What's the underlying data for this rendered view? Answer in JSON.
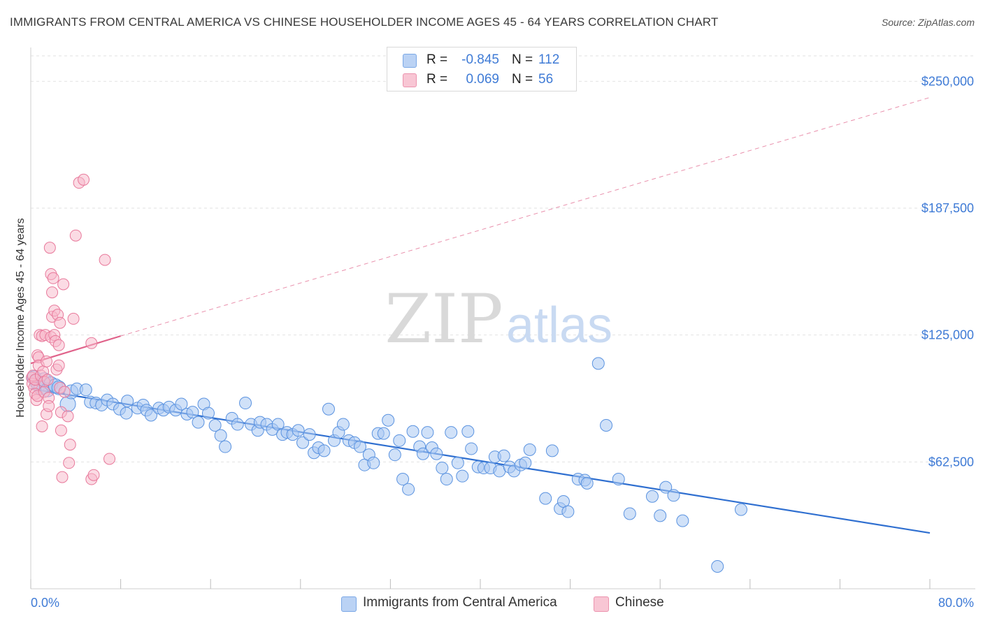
{
  "title": "IMMIGRANTS FROM CENTRAL AMERICA VS CHINESE HOUSEHOLDER INCOME AGES 45 - 64 YEARS CORRELATION CHART",
  "source": "Source: ZipAtlas.com",
  "watermark": {
    "zip": "ZIP",
    "atlas": "atlas"
  },
  "legend": {
    "rows": [
      {
        "r_label": "R =",
        "r_value": "-0.845",
        "n_label": "N =",
        "n_value": "112"
      },
      {
        "r_label": "R =",
        "r_value": "0.069",
        "n_label": "N =",
        "n_value": "56"
      }
    ]
  },
  "bottom_legend": {
    "series1": "Immigrants from Central America",
    "series2": "Chinese"
  },
  "colors": {
    "blue_fill": "#a9c8f2",
    "blue_stroke": "#5b93e0",
    "blue_line": "#2f6fd0",
    "pink_fill": "#f7b8ca",
    "pink_stroke": "#e8799b",
    "pink_line": "#e0628a",
    "tick_text": "#3f7bd6"
  },
  "chart_data": {
    "type": "scatter",
    "title": "IMMIGRANTS FROM CENTRAL AMERICA VS CHINESE HOUSEHOLDER INCOME AGES 45 - 64 YEARS CORRELATION CHART",
    "xlabel": "",
    "ylabel": "Householder Income Ages 45 - 64 years",
    "xlim": [
      0,
      80
    ],
    "ylim": [
      0,
      262500
    ],
    "x_tick_labels": [
      "0.0%",
      "80.0%"
    ],
    "y_ticks": [
      62500,
      125000,
      187500,
      250000
    ],
    "y_tick_labels": [
      "$62,500",
      "$125,000",
      "$187,500",
      "$250,000"
    ],
    "grid": true,
    "legend_position": "top-center",
    "series": [
      {
        "name": "Immigrants from Central America",
        "R": -0.845,
        "N": 112,
        "trend": {
          "x": [
            0,
            80
          ],
          "y": [
            98500,
            27500
          ]
        },
        "points": [
          [
            0.3,
            104000
          ],
          [
            0.5,
            102000
          ],
          [
            0.7,
            100500
          ],
          [
            0.9,
            99000
          ],
          [
            1.2,
            103000
          ],
          [
            1.5,
            98000
          ],
          [
            1.8,
            101000
          ],
          [
            2.2,
            100000
          ],
          [
            2.5,
            99000
          ],
          [
            3.3,
            91000
          ],
          [
            3.6,
            97000
          ],
          [
            4.1,
            98500
          ],
          [
            4.9,
            98000
          ],
          [
            5.3,
            92000
          ],
          [
            5.8,
            91500
          ],
          [
            6.3,
            90500
          ],
          [
            6.8,
            93000
          ],
          [
            7.3,
            91000
          ],
          [
            7.9,
            88500
          ],
          [
            8.5,
            86500
          ],
          [
            8.6,
            92500
          ],
          [
            9.5,
            89000
          ],
          [
            10.0,
            90500
          ],
          [
            10.3,
            88000
          ],
          [
            10.7,
            85500
          ],
          [
            11.4,
            89000
          ],
          [
            11.8,
            88000
          ],
          [
            12.3,
            89500
          ],
          [
            12.9,
            88000
          ],
          [
            13.4,
            91000
          ],
          [
            13.9,
            86000
          ],
          [
            14.4,
            87000
          ],
          [
            14.9,
            82000
          ],
          [
            15.4,
            91000
          ],
          [
            15.8,
            86500
          ],
          [
            16.4,
            80500
          ],
          [
            16.9,
            75500
          ],
          [
            17.3,
            70000
          ],
          [
            17.9,
            84000
          ],
          [
            18.4,
            81000
          ],
          [
            19.1,
            91500
          ],
          [
            19.6,
            81000
          ],
          [
            20.2,
            78000
          ],
          [
            20.4,
            82000
          ],
          [
            21.0,
            81000
          ],
          [
            21.5,
            78500
          ],
          [
            22.0,
            81000
          ],
          [
            22.4,
            76000
          ],
          [
            22.8,
            77000
          ],
          [
            23.3,
            76000
          ],
          [
            23.8,
            78000
          ],
          [
            24.2,
            72000
          ],
          [
            24.8,
            76000
          ],
          [
            25.2,
            67000
          ],
          [
            25.6,
            69500
          ],
          [
            26.1,
            68000
          ],
          [
            26.5,
            88500
          ],
          [
            27.0,
            73000
          ],
          [
            27.4,
            77000
          ],
          [
            27.8,
            81000
          ],
          [
            28.3,
            73000
          ],
          [
            28.8,
            72000
          ],
          [
            29.3,
            70000
          ],
          [
            29.7,
            61000
          ],
          [
            30.1,
            66000
          ],
          [
            30.5,
            62000
          ],
          [
            30.9,
            76500
          ],
          [
            31.4,
            76500
          ],
          [
            31.8,
            83000
          ],
          [
            32.4,
            66000
          ],
          [
            32.8,
            73000
          ],
          [
            33.1,
            54000
          ],
          [
            33.6,
            49000
          ],
          [
            34.0,
            77500
          ],
          [
            34.6,
            70000
          ],
          [
            34.9,
            66500
          ],
          [
            35.3,
            77000
          ],
          [
            35.7,
            69500
          ],
          [
            36.1,
            66500
          ],
          [
            36.6,
            59500
          ],
          [
            37.0,
            54000
          ],
          [
            37.4,
            77000
          ],
          [
            38.0,
            62000
          ],
          [
            38.4,
            55500
          ],
          [
            38.9,
            77500
          ],
          [
            39.2,
            69000
          ],
          [
            39.8,
            60000
          ],
          [
            40.3,
            59500
          ],
          [
            40.9,
            59500
          ],
          [
            41.3,
            65000
          ],
          [
            41.7,
            58000
          ],
          [
            42.1,
            65500
          ],
          [
            42.6,
            60000
          ],
          [
            43.0,
            58000
          ],
          [
            43.6,
            61000
          ],
          [
            44.0,
            62000
          ],
          [
            44.4,
            68500
          ],
          [
            45.8,
            44500
          ],
          [
            46.4,
            68000
          ],
          [
            47.1,
            39500
          ],
          [
            47.4,
            43000
          ],
          [
            47.8,
            38000
          ],
          [
            48.7,
            54000
          ],
          [
            49.3,
            53500
          ],
          [
            49.5,
            52000
          ],
          [
            50.5,
            111000
          ],
          [
            51.2,
            80500
          ],
          [
            52.3,
            54000
          ],
          [
            53.3,
            37000
          ],
          [
            56.5,
            50000
          ],
          [
            57.2,
            46000
          ],
          [
            58.0,
            33500
          ],
          [
            61.1,
            11000
          ],
          [
            63.2,
            39000
          ],
          [
            56.0,
            36000
          ],
          [
            55.3,
            45500
          ]
        ]
      },
      {
        "name": "Chinese",
        "R": 0.069,
        "N": 56,
        "trend_solid": {
          "x": [
            0,
            8
          ],
          "y": [
            111000,
            124500
          ]
        },
        "trend_dashed": {
          "x": [
            8,
            80
          ],
          "y": [
            124500,
            242000
          ]
        },
        "points": [
          [
            0.1,
            104000
          ],
          [
            0.15,
            101000
          ],
          [
            0.2,
            105000
          ],
          [
            0.3,
            99000
          ],
          [
            0.4,
            103000
          ],
          [
            0.4,
            96000
          ],
          [
            0.5,
            93000
          ],
          [
            0.6,
            95000
          ],
          [
            0.6,
            115000
          ],
          [
            0.7,
            114000
          ],
          [
            0.7,
            110000
          ],
          [
            0.8,
            125000
          ],
          [
            0.9,
            105000
          ],
          [
            1.0,
            80000
          ],
          [
            1.0,
            124500
          ],
          [
            1.1,
            107000
          ],
          [
            1.2,
            102000
          ],
          [
            1.2,
            97000
          ],
          [
            1.3,
            125000
          ],
          [
            1.4,
            112000
          ],
          [
            1.4,
            86000
          ],
          [
            1.5,
            103000
          ],
          [
            1.6,
            94000
          ],
          [
            1.6,
            90000
          ],
          [
            1.7,
            168000
          ],
          [
            1.8,
            155000
          ],
          [
            1.8,
            124000
          ],
          [
            1.9,
            146000
          ],
          [
            1.9,
            134000
          ],
          [
            2.0,
            153000
          ],
          [
            2.1,
            137000
          ],
          [
            2.1,
            125000
          ],
          [
            2.2,
            122000
          ],
          [
            2.3,
            108000
          ],
          [
            2.4,
            135000
          ],
          [
            2.5,
            120000
          ],
          [
            2.5,
            110000
          ],
          [
            2.6,
            131000
          ],
          [
            2.6,
            99000
          ],
          [
            2.7,
            87000
          ],
          [
            2.7,
            78000
          ],
          [
            2.8,
            55000
          ],
          [
            2.9,
            150000
          ],
          [
            3.0,
            97000
          ],
          [
            3.3,
            85000
          ],
          [
            3.4,
            62000
          ],
          [
            3.5,
            71000
          ],
          [
            3.8,
            133000
          ],
          [
            4.0,
            174000
          ],
          [
            4.3,
            200000
          ],
          [
            4.7,
            201500
          ],
          [
            5.4,
            121000
          ],
          [
            5.4,
            54000
          ],
          [
            5.6,
            56000
          ],
          [
            6.6,
            162000
          ],
          [
            7.0,
            64000
          ]
        ]
      }
    ]
  }
}
